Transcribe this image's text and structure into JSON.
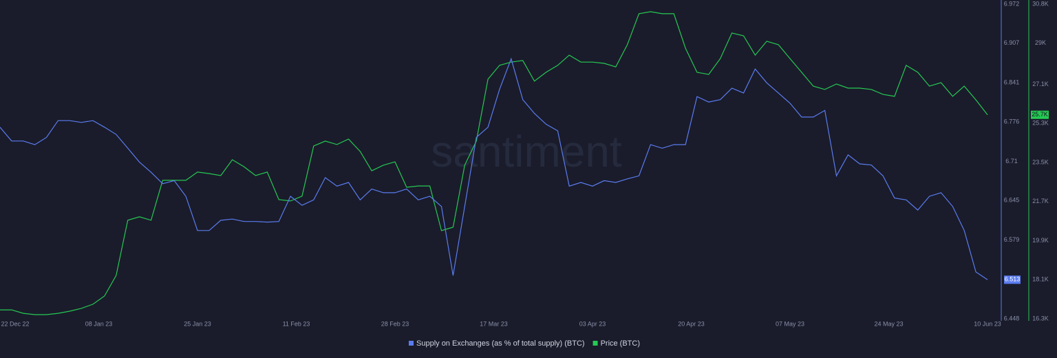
{
  "chart_data": {
    "type": "line",
    "watermark": "santiment",
    "x": [
      "2022-12-22",
      "2022-12-24",
      "2022-12-26",
      "2022-12-28",
      "2022-12-30",
      "2023-01-01",
      "2023-01-03",
      "2023-01-05",
      "2023-01-07",
      "2023-01-09",
      "2023-01-11",
      "2023-01-13",
      "2023-01-15",
      "2023-01-17",
      "2023-01-19",
      "2023-01-21",
      "2023-01-23",
      "2023-01-25",
      "2023-01-27",
      "2023-01-29",
      "2023-01-31",
      "2023-02-02",
      "2023-02-04",
      "2023-02-06",
      "2023-02-08",
      "2023-02-10",
      "2023-02-12",
      "2023-02-14",
      "2023-02-16",
      "2023-02-18",
      "2023-02-20",
      "2023-02-22",
      "2023-02-24",
      "2023-02-26",
      "2023-02-28",
      "2023-03-02",
      "2023-03-04",
      "2023-03-06",
      "2023-03-08",
      "2023-03-10",
      "2023-03-12",
      "2023-03-14",
      "2023-03-16",
      "2023-03-18",
      "2023-03-20",
      "2023-03-22",
      "2023-03-24",
      "2023-03-26",
      "2023-03-28",
      "2023-03-30",
      "2023-04-01",
      "2023-04-03",
      "2023-04-05",
      "2023-04-07",
      "2023-04-09",
      "2023-04-11",
      "2023-04-13",
      "2023-04-15",
      "2023-04-17",
      "2023-04-19",
      "2023-04-21",
      "2023-04-23",
      "2023-04-25",
      "2023-04-27",
      "2023-04-29",
      "2023-05-01",
      "2023-05-03",
      "2023-05-05",
      "2023-05-07",
      "2023-05-09",
      "2023-05-11",
      "2023-05-13",
      "2023-05-15",
      "2023-05-17",
      "2023-05-19",
      "2023-05-21",
      "2023-05-23",
      "2023-05-25",
      "2023-05-27",
      "2023-05-29",
      "2023-05-31",
      "2023-06-02",
      "2023-06-04",
      "2023-06-06",
      "2023-06-08",
      "2023-06-10"
    ],
    "xlim": [
      "2022-12-22",
      "2023-06-10"
    ],
    "xticks": [
      {
        "value": "2022-12-22",
        "label": "22 Dec 22"
      },
      {
        "value": "2023-01-08",
        "label": "08 Jan 23"
      },
      {
        "value": "2023-01-25",
        "label": "25 Jan 23"
      },
      {
        "value": "2023-02-11",
        "label": "11 Feb 23"
      },
      {
        "value": "2023-02-28",
        "label": "28 Feb 23"
      },
      {
        "value": "2023-03-17",
        "label": "17 Mar 23"
      },
      {
        "value": "2023-04-03",
        "label": "03 Apr 23"
      },
      {
        "value": "2023-04-20",
        "label": "20 Apr 23"
      },
      {
        "value": "2023-05-07",
        "label": "07 May 23"
      },
      {
        "value": "2023-05-24",
        "label": "24 May 23"
      },
      {
        "value": "2023-06-10",
        "label": "10 Jun 23"
      }
    ],
    "ylim": [
      6.448,
      6.972
    ],
    "yticks": [
      6.448,
      6.513,
      6.579,
      6.645,
      6.71,
      6.776,
      6.841,
      6.907,
      6.972
    ],
    "y2lim": [
      16300,
      30800
    ],
    "y2ticks": [
      {
        "value": 16300,
        "label": "16.3K"
      },
      {
        "value": 18100,
        "label": "18.1K"
      },
      {
        "value": 19900,
        "label": "19.9K"
      },
      {
        "value": 21700,
        "label": "21.7K"
      },
      {
        "value": 23500,
        "label": "23.5K"
      },
      {
        "value": 25300,
        "label": "25.3K"
      },
      {
        "value": 27100,
        "label": "27.1K"
      },
      {
        "value": 29000,
        "label": "29K"
      },
      {
        "value": 30800,
        "label": "30.8K"
      }
    ],
    "series": [
      {
        "name": "Supply on Exchanges (as % of total supply) (BTC)",
        "color": "#5b7cf0",
        "axis": "y",
        "values": [
          6.767,
          6.744,
          6.744,
          6.738,
          6.75,
          6.778,
          6.778,
          6.775,
          6.778,
          6.767,
          6.755,
          6.732,
          6.709,
          6.692,
          6.673,
          6.678,
          6.652,
          6.595,
          6.595,
          6.612,
          6.614,
          6.61,
          6.61,
          6.609,
          6.61,
          6.652,
          6.637,
          6.646,
          6.683,
          6.669,
          6.675,
          6.646,
          6.664,
          6.658,
          6.658,
          6.664,
          6.646,
          6.652,
          6.635,
          6.52,
          6.635,
          6.75,
          6.767,
          6.83,
          6.881,
          6.813,
          6.79,
          6.772,
          6.761,
          6.669,
          6.675,
          6.669,
          6.678,
          6.675,
          6.681,
          6.686,
          6.738,
          6.732,
          6.738,
          6.738,
          6.818,
          6.809,
          6.813,
          6.832,
          6.824,
          6.864,
          6.841,
          6.824,
          6.807,
          6.784,
          6.784,
          6.795,
          6.686,
          6.721,
          6.706,
          6.704,
          6.686,
          6.649,
          6.646,
          6.629,
          6.652,
          6.658,
          6.635,
          6.595,
          6.526,
          6.513
        ]
      },
      {
        "name": "Price (BTC)",
        "color": "#26c953",
        "axis": "y2",
        "last_value_label": "25.7K",
        "values": [
          16710,
          16710,
          16550,
          16490,
          16490,
          16550,
          16650,
          16780,
          16970,
          17350,
          18300,
          20840,
          21000,
          20840,
          22680,
          22680,
          22680,
          23060,
          22990,
          22900,
          23630,
          23310,
          22900,
          23060,
          21790,
          21730,
          21950,
          24260,
          24490,
          24330,
          24580,
          24010,
          23120,
          23380,
          23530,
          22360,
          22420,
          22420,
          20360,
          20520,
          23380,
          24490,
          27340,
          27980,
          28130,
          28200,
          27250,
          27660,
          27980,
          28450,
          28130,
          28130,
          28070,
          27910,
          28930,
          30360,
          30450,
          30360,
          30360,
          28770,
          27660,
          27560,
          28290,
          29470,
          29340,
          28450,
          29090,
          28930,
          28290,
          27660,
          27020,
          26870,
          27120,
          26930,
          26930,
          26870,
          26640,
          26550,
          27980,
          27660,
          27020,
          27180,
          26550,
          27020,
          26390,
          25700
        ]
      }
    ]
  }
}
